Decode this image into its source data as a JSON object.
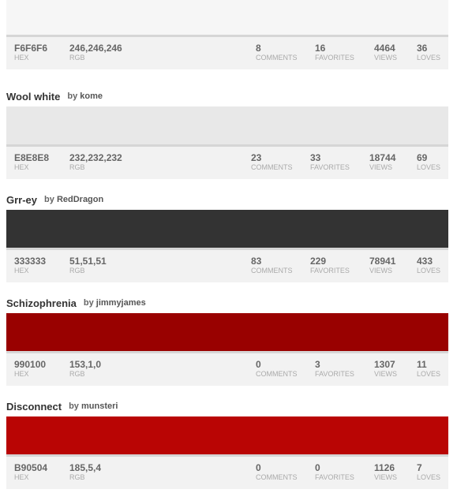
{
  "labels": {
    "hex": "HEX",
    "rgb": "RGB",
    "comments": "COMMENTS",
    "favorites": "FAVORITES",
    "views": "VIEWS",
    "loves": "LOVES",
    "by": "by"
  },
  "colors": [
    {
      "name": "",
      "author": "",
      "hex": "F6F6F6",
      "rgb": "246,246,246",
      "swatch": "#F6F6F6",
      "comments": "8",
      "favorites": "16",
      "views": "4464",
      "loves": "36"
    },
    {
      "name": "Wool white",
      "author": "kome",
      "hex": "E8E8E8",
      "rgb": "232,232,232",
      "swatch": "#E8E8E8",
      "comments": "23",
      "favorites": "33",
      "views": "18744",
      "loves": "69"
    },
    {
      "name": "Grr-ey",
      "author": "RedDragon",
      "hex": "333333",
      "rgb": "51,51,51",
      "swatch": "#333333",
      "comments": "83",
      "favorites": "229",
      "views": "78941",
      "loves": "433"
    },
    {
      "name": "Schizophrenia",
      "author": "jimmyjames",
      "hex": "990100",
      "rgb": "153,1,0",
      "swatch": "#990100",
      "comments": "0",
      "favorites": "3",
      "views": "1307",
      "loves": "11"
    },
    {
      "name": "Disconnect",
      "author": "munsteri",
      "hex": "B90504",
      "rgb": "185,5,4",
      "swatch": "#B90504",
      "comments": "0",
      "favorites": "0",
      "views": "1126",
      "loves": "7"
    }
  ]
}
